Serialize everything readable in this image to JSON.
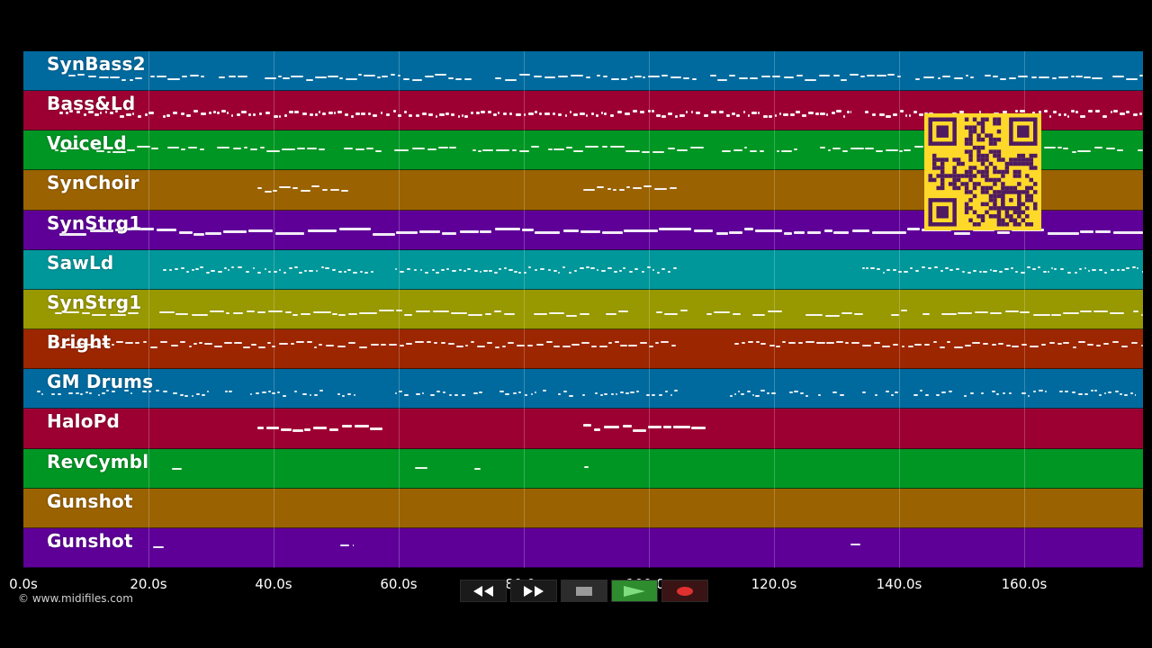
{
  "tracks": [
    {
      "label": "SynBass2",
      "color": "#006a9e"
    },
    {
      "label": "Bass&Ld",
      "color": "#9c0033"
    },
    {
      "label": "VoiceLd",
      "color": "#009624"
    },
    {
      "label": "SynChoir",
      "color": "#9a6200"
    },
    {
      "label": "SynStrg1",
      "color": "#5e0098"
    },
    {
      "label": "SawLd",
      "color": "#00979a"
    },
    {
      "label": "SynStrg1",
      "color": "#989800"
    },
    {
      "label": "Bright",
      "color": "#9b2600"
    },
    {
      "label": "GM Drums",
      "color": "#006a9e"
    },
    {
      "label": "HaloPd",
      "color": "#9c0033"
    },
    {
      "label": "RevCymbl",
      "color": "#009624"
    },
    {
      "label": "Gunshot",
      "color": "#9a6200"
    },
    {
      "label": "Gunshot",
      "color": "#5e0098"
    }
  ],
  "timeline": {
    "tick_labels": [
      "0.0s",
      "20.0s",
      "40.0s",
      "60.0s",
      "80.0s",
      "100.0s",
      "120.0s",
      "140.0s",
      "160.0s"
    ],
    "tick_seconds": [
      0,
      20,
      40,
      60,
      80,
      100,
      120,
      140,
      160
    ],
    "max_seconds": 179
  },
  "copyright": "© www.midifiles.com",
  "transport": {
    "buttons": [
      {
        "name": "rewind-button",
        "icon": "rewind-icon"
      },
      {
        "name": "fast-forward-button",
        "icon": "fast-forward-icon"
      },
      {
        "name": "stop-button",
        "icon": "stop-icon"
      },
      {
        "name": "play-button",
        "icon": "play-icon",
        "color": "#2e8b2e"
      },
      {
        "name": "record-button",
        "icon": "record-icon",
        "color": "#d42a2a"
      }
    ]
  },
  "qr_colors": {
    "fg": "#4e1a60",
    "bg": "#ffd92a"
  }
}
